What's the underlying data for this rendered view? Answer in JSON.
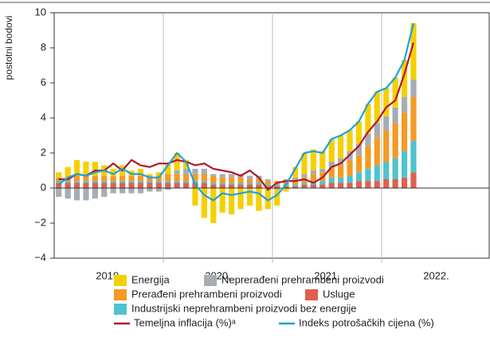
{
  "chart_data": {
    "type": "stacked_bar_line",
    "y_label": "postotni bodovi",
    "year_labels": [
      "2019.",
      "2020.",
      "2021.",
      "2022."
    ],
    "categories": [
      null,
      null,
      null,
      null,
      null,
      null,
      null,
      null,
      null,
      null,
      null,
      null,
      null,
      null,
      null,
      null,
      null,
      null,
      null,
      null,
      null,
      null,
      null,
      null,
      null,
      null,
      null,
      null,
      null,
      null,
      null,
      null,
      null,
      null,
      null,
      null,
      null,
      null,
      null,
      null
    ],
    "ylim": [
      -4,
      10
    ],
    "yticks": [
      {
        "value": -4,
        "label": "−4"
      },
      {
        "value": -2,
        "label": "−2"
      },
      0,
      2,
      4,
      6,
      8,
      10
    ],
    "series": [
      {
        "name": "Usluge",
        "color": "#e0604f",
        "values": [
          0.3,
          0.3,
          0.3,
          0.3,
          0.3,
          0.3,
          0.3,
          0.3,
          0.3,
          0.3,
          0.3,
          0.3,
          0.3,
          0.3,
          0.3,
          0.3,
          0.3,
          0.2,
          0.2,
          0.2,
          0.2,
          0.2,
          0.2,
          0.1,
          0.1,
          0.1,
          0.1,
          0.2,
          0.2,
          0.2,
          0.3,
          0.3,
          0.3,
          0.4,
          0.4,
          0.4,
          0.5,
          0.5,
          0.6,
          0.9
        ]
      },
      {
        "name": "Industrijski neprehrambeni proizvodi bez energije",
        "color": "#4fc3d0",
        "values": [
          0.1,
          0.1,
          0.1,
          0.1,
          0.1,
          0.1,
          0.1,
          0.1,
          0.1,
          0.1,
          0.1,
          0.1,
          0.1,
          0.1,
          0.1,
          0.1,
          0.1,
          0.1,
          0.1,
          0.1,
          0.1,
          0.1,
          0.1,
          0.1,
          0.1,
          0.1,
          0.1,
          0.1,
          0.2,
          0.2,
          0.3,
          0.3,
          0.4,
          0.5,
          0.7,
          0.9,
          1.0,
          1.2,
          1.5,
          1.8
        ]
      },
      {
        "name": "Prerađeni prehrambeni proizvodi",
        "color": "#f59a23",
        "values": [
          0.2,
          0.2,
          0.3,
          0.3,
          0.3,
          0.3,
          0.3,
          0.3,
          0.3,
          0.3,
          0.3,
          0.3,
          0.4,
          0.4,
          0.4,
          0.4,
          0.4,
          0.4,
          0.3,
          0.3,
          0.3,
          0.2,
          0.2,
          0.2,
          0.2,
          0.2,
          0.3,
          0.3,
          0.4,
          0.5,
          0.6,
          0.7,
          0.9,
          1.0,
          1.3,
          1.6,
          1.8,
          2.0,
          2.2,
          2.5
        ]
      },
      {
        "name": "Neprerađeni prehrambeni proizvodi",
        "color": "#a7adb3",
        "values": [
          -0.5,
          -0.6,
          -0.7,
          -0.7,
          -0.6,
          -0.5,
          -0.3,
          -0.3,
          -0.3,
          -0.3,
          -0.2,
          -0.2,
          -0.1,
          0.2,
          0.3,
          0.3,
          0.3,
          0.1,
          0.2,
          0.2,
          0.2,
          0.2,
          0.2,
          0.1,
          -0.1,
          0.1,
          0.1,
          0.2,
          0.2,
          0.2,
          0.3,
          0.4,
          0.5,
          0.6,
          0.7,
          0.8,
          0.8,
          0.9,
          0.9,
          1.0
        ]
      },
      {
        "name": "Energija",
        "color": "#f5d000",
        "values": [
          0.3,
          0.6,
          0.9,
          0.8,
          0.8,
          0.6,
          0.4,
          0.6,
          0.3,
          0.4,
          0.1,
          0.2,
          0.6,
          1.0,
          0.5,
          -1.0,
          -1.7,
          -2.0,
          -1.4,
          -1.5,
          -1.2,
          -1.0,
          -1.3,
          -1.2,
          -0.9,
          -0.2,
          0.6,
          1.2,
          1.2,
          1.0,
          1.3,
          1.3,
          1.2,
          1.3,
          1.7,
          1.8,
          1.6,
          1.7,
          2.1,
          3.2
        ]
      }
    ],
    "lines": [
      {
        "name": "Temeljna inflacija (%)ᵃ",
        "color": "#b0192a",
        "values": [
          0.5,
          0.5,
          0.8,
          0.7,
          1.0,
          1.0,
          1.4,
          1.0,
          1.6,
          1.3,
          1.2,
          1.4,
          1.4,
          1.6,
          1.5,
          1.3,
          1.4,
          1.1,
          1.0,
          0.9,
          0.7,
          1.0,
          0.6,
          -0.1,
          0.3,
          0.4,
          0.4,
          0.5,
          0.3,
          0.6,
          1.2,
          1.4,
          1.9,
          2.4,
          3.2,
          3.8,
          4.6,
          5.0,
          6.5,
          8.3
        ]
      },
      {
        "name": "Indeks potrošačkih cijena (%)",
        "color": "#1ea0dc",
        "values": [
          0.2,
          0.6,
          0.8,
          0.7,
          0.9,
          1.0,
          0.8,
          1.1,
          0.8,
          0.8,
          0.6,
          0.6,
          1.3,
          2.0,
          1.5,
          0.2,
          -0.4,
          -0.7,
          -0.3,
          -0.4,
          -0.3,
          -0.2,
          -0.3,
          -0.7,
          -0.4,
          0.2,
          1.1,
          2.0,
          2.1,
          2.0,
          2.8,
          3.0,
          3.3,
          3.8,
          4.8,
          5.5,
          5.7,
          6.3,
          7.3,
          9.4
        ]
      }
    ]
  }
}
